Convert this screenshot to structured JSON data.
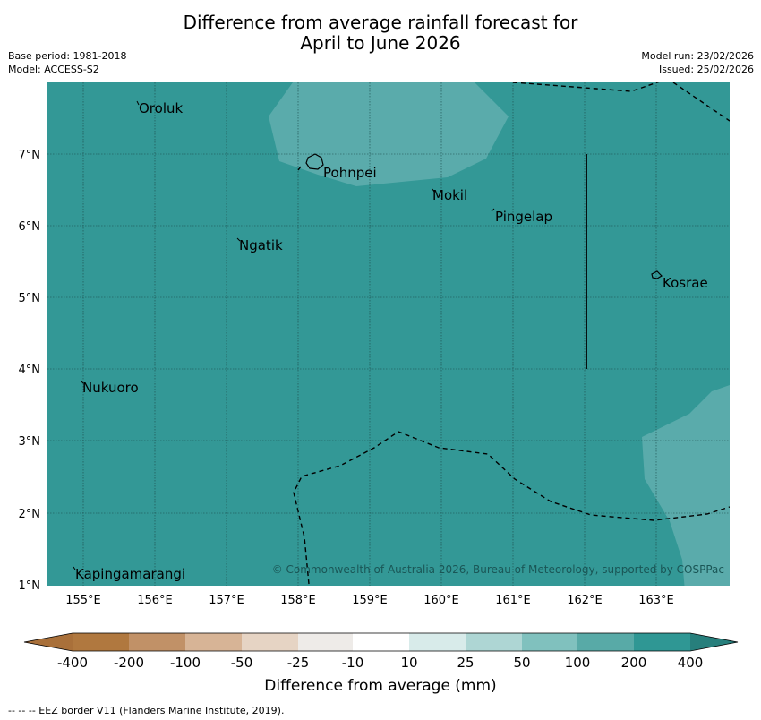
{
  "title": {
    "line1": "Difference from average rainfall forecast for",
    "line2": "April to June 2026"
  },
  "meta": {
    "base_period": "Base period: 1981-2018",
    "model": "Model: ACCESS-S2",
    "model_run": "Model run: 23/02/2026",
    "issued": "Issued: 25/02/2026"
  },
  "map": {
    "lon_labels": [
      "155°E",
      "156°E",
      "157°E",
      "158°E",
      "159°E",
      "160°E",
      "161°E",
      "162°E",
      "163°E"
    ],
    "lat_labels": [
      "7°N",
      "6°N",
      "5°N",
      "4°N",
      "3°N",
      "2°N",
      "1°N"
    ],
    "places": [
      {
        "name": "Oroluk"
      },
      {
        "name": "Pohnpei"
      },
      {
        "name": "Mokil"
      },
      {
        "name": "Pingelap"
      },
      {
        "name": "Ngatik"
      },
      {
        "name": "Kosrae"
      },
      {
        "name": "Nukuoro"
      },
      {
        "name": "Kapingamarangi"
      }
    ],
    "copyright": "© Commonwealth of Australia 2026, Bureau of Meteorology, supported by COSPPac"
  },
  "colorbar": {
    "labels": [
      "-400",
      "-200",
      "-100",
      "-50",
      "-25",
      "-10",
      "10",
      "25",
      "50",
      "100",
      "200",
      "400"
    ],
    "colors": [
      "#a9703a",
      "#b0783f",
      "#c19167",
      "#d7b496",
      "#e6d4c4",
      "#eeebe8",
      "#ffffff",
      "#d8ebea",
      "#aed6d4",
      "#80c1be",
      "#58aaa7",
      "#2f9794",
      "#277f7c"
    ],
    "title": "Difference from average (mm)"
  },
  "colors": {
    "sea_fill": "#339896",
    "light_fill": "#5aabab"
  },
  "footnote": "--  --  -- EEZ border V11 (Flanders Marine Institute, 2019)."
}
